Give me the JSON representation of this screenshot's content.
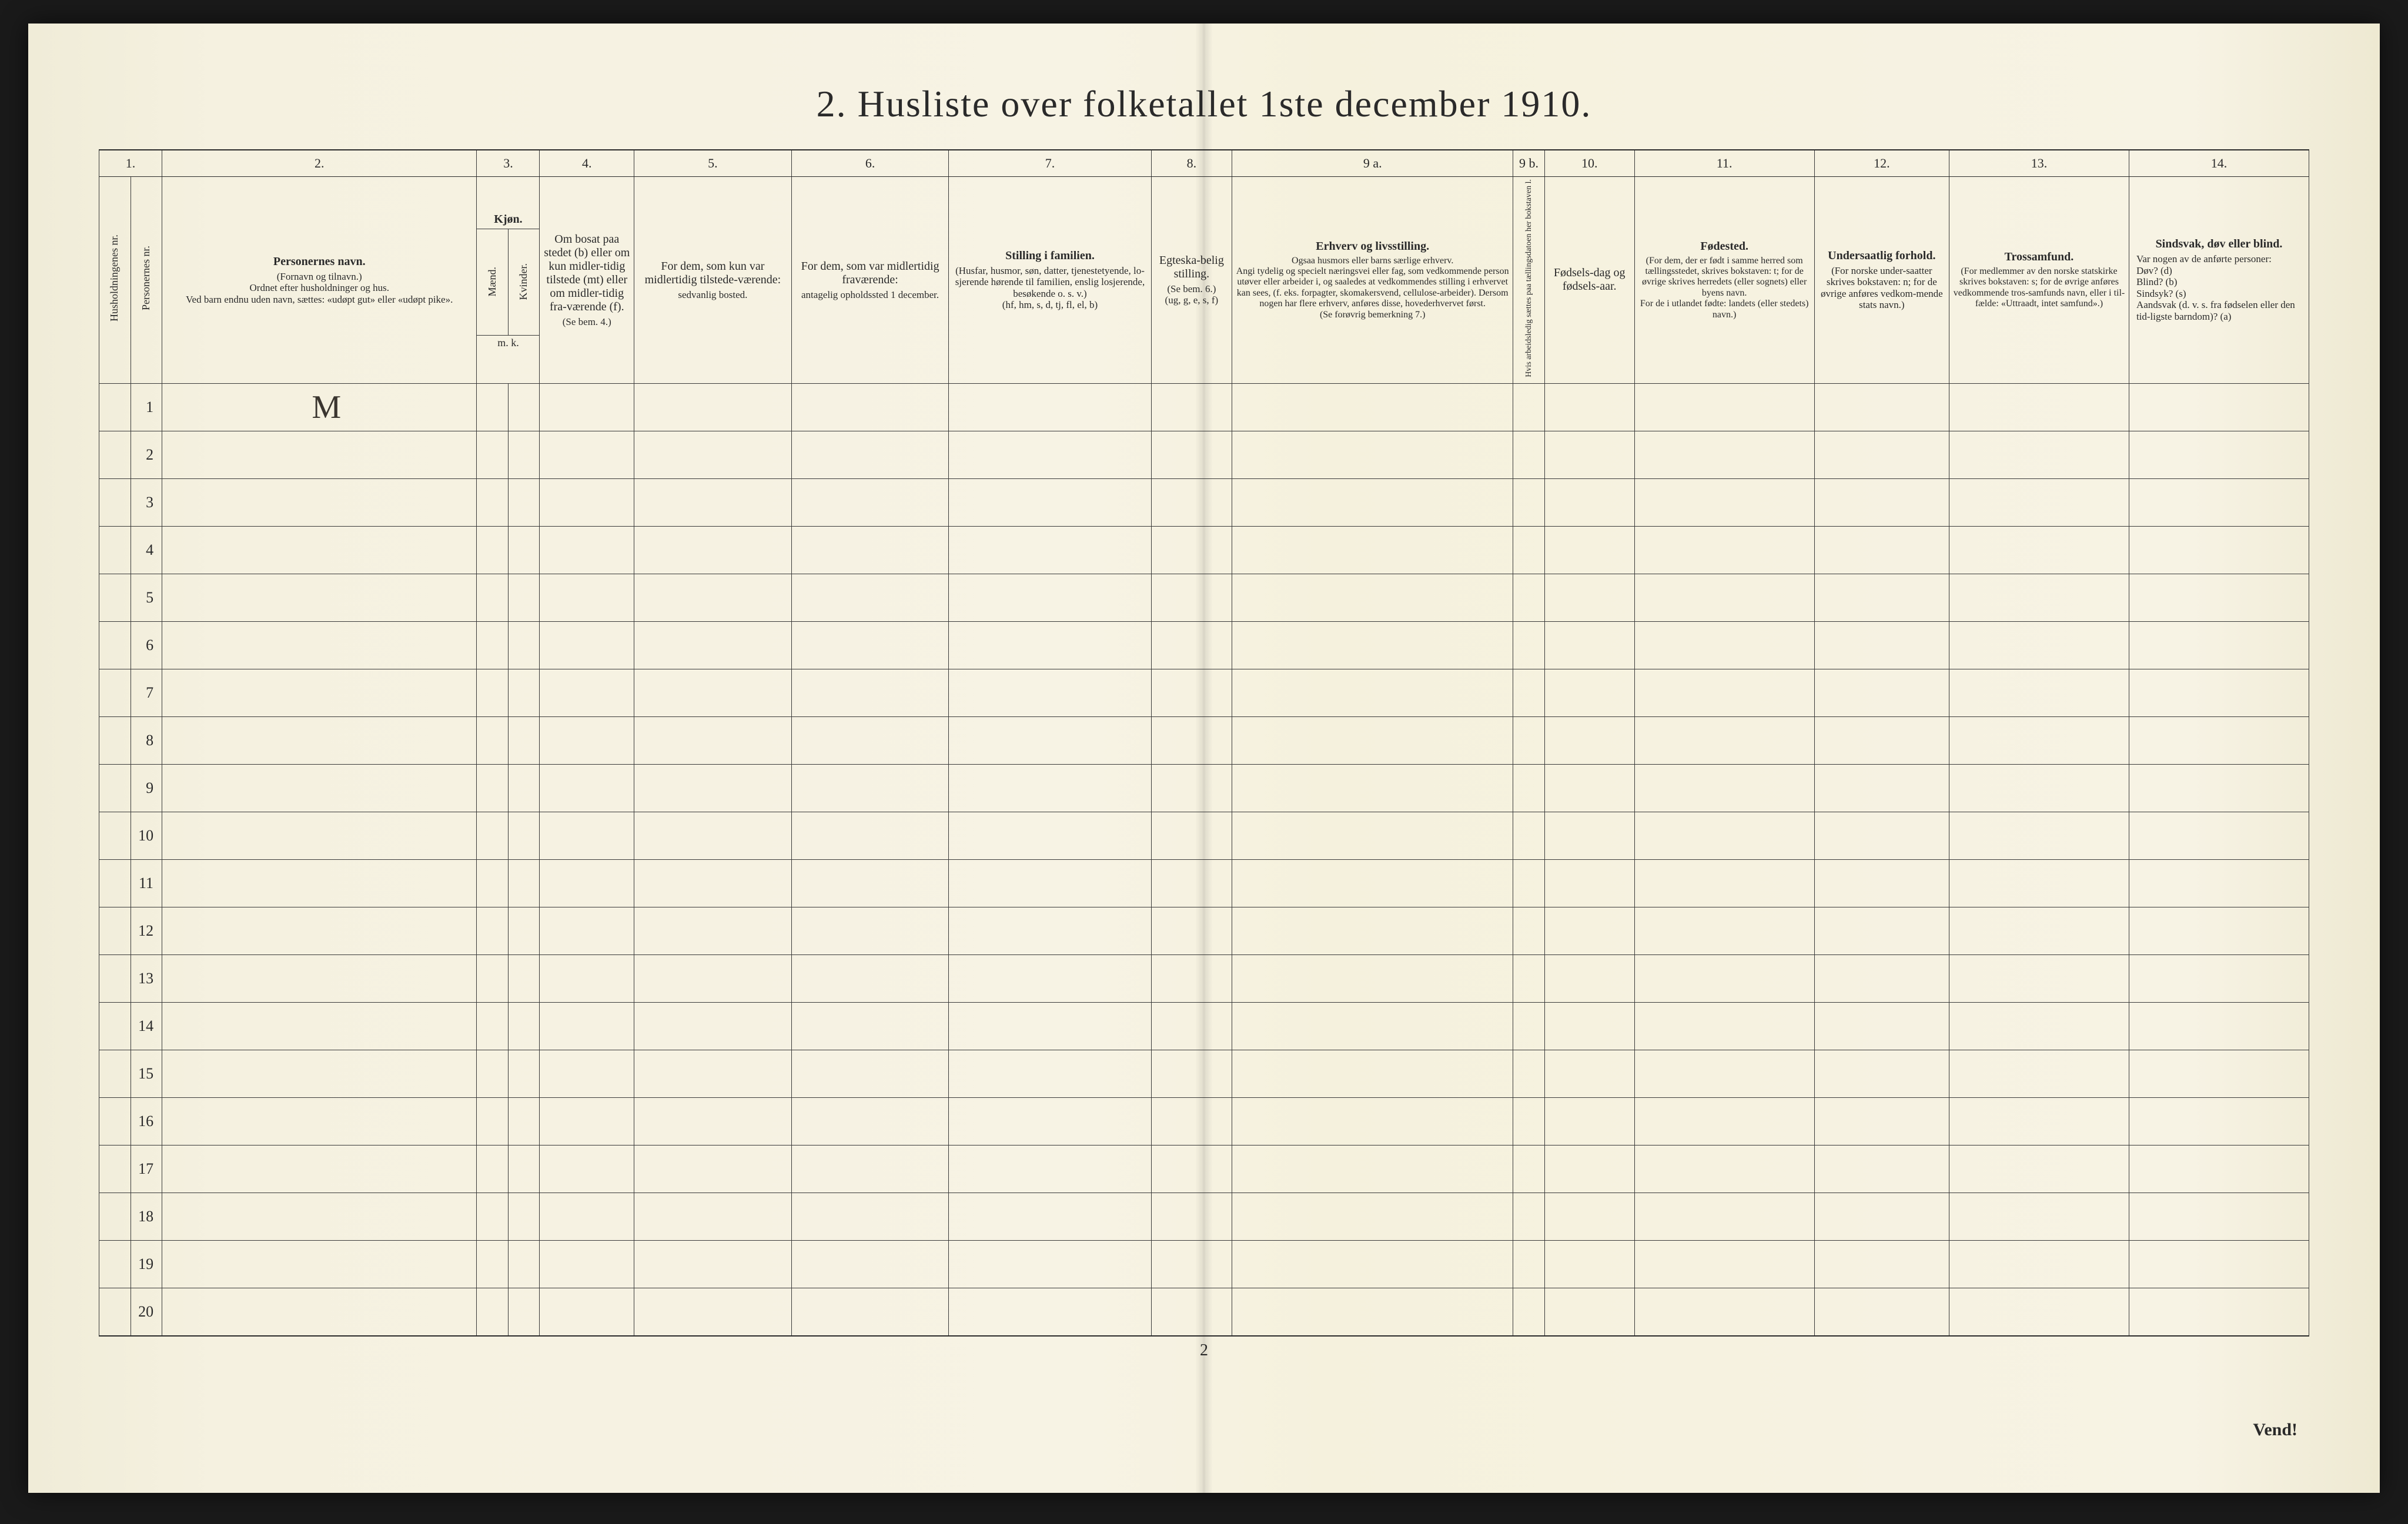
{
  "title": "2.  Husliste over folketallet 1ste december 1910.",
  "page_number_bottom": "2",
  "vend": "Vend!",
  "col_numbers": [
    "1.",
    "",
    "2.",
    "3.",
    "",
    "4.",
    "5.",
    "6.",
    "7.",
    "8.",
    "9 a.",
    "9 b.",
    "10.",
    "11.",
    "12.",
    "13.",
    "14."
  ],
  "headers": {
    "c1a": "Husholdningenes nr.",
    "c1b": "Personernes nr.",
    "c2_main": "Personernes navn.",
    "c2_sub": "(Fornavn og tilnavn.)\nOrdnet efter husholdninger og hus.\nVed barn endnu uden navn, sættes: «udøpt gut» eller «udøpt pike».",
    "c3_title": "Kjøn.",
    "c3a": "Mænd.",
    "c3b": "Kvinder.",
    "c3_foot": "m.  k.",
    "c4_main": "Om bosat paa stedet (b) eller om kun midler-tidig tilstede (mt) eller om midler-tidig fra-værende (f).",
    "c4_sub": "(Se bem. 4.)",
    "c5_main": "For dem, som kun var midlertidig tilstede-værende:",
    "c5_sub": "sedvanlig bosted.",
    "c6_main": "For dem, som var midlertidig fraværende:",
    "c6_sub": "antagelig opholdssted 1 december.",
    "c7_main": "Stilling i familien.",
    "c7_sub": "(Husfar, husmor, søn, datter, tjenestetyende, lo-sjerende hørende til familien, enslig losjerende, besøkende o. s. v.)\n(hf, hm, s, d, tj, fl, el, b)",
    "c8_main": "Egteska-belig stilling.",
    "c8_sub": "(Se bem. 6.)\n(ug, g, e, s, f)",
    "c9a_main": "Erhverv og livsstilling.",
    "c9a_sub": "Ogsaa husmors eller barns særlige erhverv.\nAngi tydelig og specielt næringsvei eller fag, som vedkommende person utøver eller arbeider i, og saaledes at vedkommendes stilling i erhvervet kan sees, (f. eks. forpagter, skomakersvend, cellulose-arbeider). Dersom nogen har flere erhverv, anføres disse, hovederhvervet først.\n(Se forøvrig bemerkning 7.)",
    "c9b": "Hvis arbeidsledig sættes paa tællingsdatoen her bokstaven l.",
    "c10_main": "Fødsels-dag og fødsels-aar.",
    "c11_main": "Fødested.",
    "c11_sub": "(For dem, der er født i samme herred som tællingsstedet, skrives bokstaven: t; for de øvrige skrives herredets (eller sognets) eller byens navn.\nFor de i utlandet fødte: landets (eller stedets) navn.)",
    "c12_main": "Undersaatlig forhold.",
    "c12_sub": "(For norske under-saatter skrives bokstaven: n; for de øvrige anføres vedkom-mende stats navn.)",
    "c13_main": "Trossamfund.",
    "c13_sub": "(For medlemmer av den norske statskirke skrives bokstaven: s; for de øvrige anføres vedkommende tros-samfunds navn, eller i til-fælde: «Uttraadt, intet samfund».)",
    "c14_main": "Sindsvak, døv eller blind.",
    "c14_sub": "Var nogen av de anførte personer:\nDøv?       (d)\nBlind?     (b)\nSindsyk?   (s)\nAandsvak (d. v. s. fra fødselen eller den tid-ligste barndom)?  (a)"
  },
  "rows": [
    {
      "n": "1",
      "name": "M"
    },
    {
      "n": "2"
    },
    {
      "n": "3"
    },
    {
      "n": "4"
    },
    {
      "n": "5"
    },
    {
      "n": "6"
    },
    {
      "n": "7"
    },
    {
      "n": "8"
    },
    {
      "n": "9"
    },
    {
      "n": "10"
    },
    {
      "n": "11"
    },
    {
      "n": "12"
    },
    {
      "n": "13"
    },
    {
      "n": "14"
    },
    {
      "n": "15"
    },
    {
      "n": "16"
    },
    {
      "n": "17"
    },
    {
      "n": "18"
    },
    {
      "n": "19"
    },
    {
      "n": "20"
    }
  ]
}
